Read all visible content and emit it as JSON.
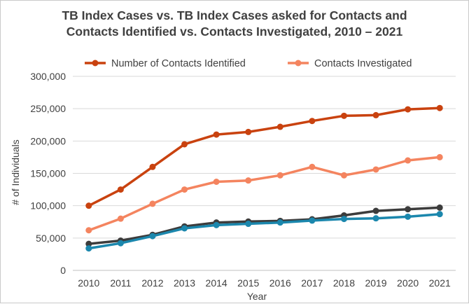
{
  "chart_data": {
    "type": "line",
    "title_lines": [
      "TB Index Cases vs. TB Index Cases asked for Contacts and",
      "Contacts Identified vs. Contacts Investigated, 2010 – 2021"
    ],
    "xlabel": "Year",
    "ylabel": "# of Individuals",
    "ylim": [
      0,
      300000
    ],
    "yticks": [
      0,
      50000,
      100000,
      150000,
      200000,
      250000,
      300000
    ],
    "ytick_labels": [
      "0",
      "50,000",
      "100,000",
      "150,000",
      "200,000",
      "250,000",
      "300,000"
    ],
    "categories": [
      "2010",
      "2011",
      "2012",
      "2013",
      "2014",
      "2015",
      "2016",
      "2017",
      "2018",
      "2019",
      "2020",
      "2021"
    ],
    "grid": true,
    "legend_position": "top",
    "series": [
      {
        "name": "Number of Contacts Identified",
        "color": "#c9420f",
        "in_legend": true,
        "values": [
          100000,
          125000,
          160000,
          195000,
          210000,
          214000,
          222000,
          231000,
          239000,
          240000,
          249000,
          251000
        ]
      },
      {
        "name": "Contacts Investigated",
        "color": "#f4845f",
        "in_legend": true,
        "values": [
          62000,
          80000,
          103000,
          125000,
          137000,
          139000,
          147000,
          160000,
          147000,
          156000,
          170000,
          175000
        ]
      },
      {
        "color": "#3c3c3c",
        "in_legend": false,
        "values": [
          41000,
          46000,
          55000,
          68000,
          74000,
          75500,
          76500,
          79000,
          85000,
          92000,
          94500,
          97000
        ]
      },
      {
        "color": "#1b87ad",
        "in_legend": false,
        "values": [
          34000,
          42000,
          53000,
          65000,
          70000,
          72000,
          74000,
          77000,
          79500,
          80500,
          83000,
          87000
        ]
      }
    ]
  }
}
